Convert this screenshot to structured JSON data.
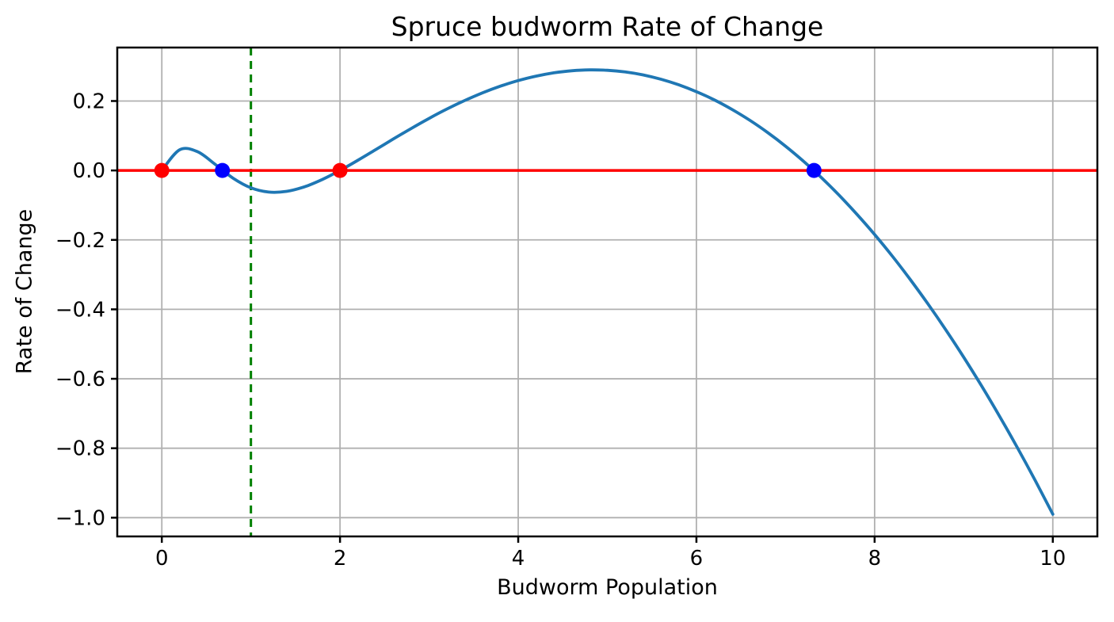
{
  "chart_data": {
    "type": "line",
    "title": "Spruce budworm Rate of Change",
    "xlabel": "Budworm Population",
    "ylabel": "Rate of Change",
    "xlim": [
      -0.5,
      10.5
    ],
    "ylim": [
      -1.054,
      0.354
    ],
    "x_ticks": [
      0,
      2,
      4,
      6,
      8,
      10
    ],
    "x_tick_labels": [
      "0",
      "2",
      "4",
      "6",
      "8",
      "10"
    ],
    "y_ticks": [
      0.2,
      0.0,
      -0.2,
      -0.4,
      -0.6,
      -0.8,
      -1.0
    ],
    "y_tick_labels": [
      "0.2",
      "0.0",
      "−0.2",
      "−0.4",
      "−0.6",
      "−0.8",
      "−1.0"
    ],
    "grid": true,
    "legend": "none",
    "colors": {
      "curve": "#1f77b4",
      "zero_line": "#ff0000",
      "threshold_line": "#008000",
      "unstable_point": "#ff0000",
      "stable_point": "#0000ff",
      "grid": "#b0b0b0",
      "spine": "#000000",
      "text": "#000000",
      "background": "#ffffff"
    },
    "series": [
      {
        "name": "rate-of-change-curve",
        "color": "#1f77b4",
        "x": [
          0,
          0.2,
          0.4,
          0.6,
          0.8,
          1,
          1.2,
          1.4,
          1.6,
          1.8,
          2,
          2.2,
          2.4,
          2.6,
          2.8,
          3,
          3.2,
          3.4,
          3.6,
          3.8,
          4,
          4.2,
          4.4,
          4.6,
          4.8,
          5,
          5.2,
          5.4,
          5.6,
          5.8,
          6,
          6.2,
          6.4,
          6.6,
          6.8,
          7,
          7.2,
          7.4,
          7.6,
          7.8,
          8,
          8.2,
          8.4,
          8.6,
          8.8,
          9,
          9.2,
          9.4,
          9.6,
          9.8,
          10
        ],
        "y": [
          0,
          0.0595,
          0.0541,
          0.0173,
          -0.0222,
          -0.05,
          -0.0622,
          -0.0602,
          -0.0471,
          -0.0262,
          0,
          0.0292,
          0.0599,
          0.0909,
          0.1211,
          0.15,
          0.177,
          0.2016,
          0.2236,
          0.2428,
          0.2588,
          0.2716,
          0.2811,
          0.2871,
          0.2896,
          0.2885,
          0.2837,
          0.2752,
          0.2629,
          0.2469,
          0.227,
          0.2034,
          0.1758,
          0.1444,
          0.1092,
          0.07,
          0.0269,
          -0.0201,
          -0.071,
          -0.1258,
          -0.1846,
          -0.2473,
          -0.314,
          -0.3847,
          -0.4593,
          -0.5378,
          -0.6203,
          -0.7068,
          -0.7973,
          -0.8917,
          -0.9901
        ]
      }
    ],
    "reference_lines": {
      "horizontal": {
        "y": 0,
        "color": "#ff0000",
        "style": "solid"
      },
      "vertical": {
        "x": 1,
        "color": "#008000",
        "style": "dashed"
      }
    },
    "points": [
      {
        "x": 0,
        "y": 0,
        "color": "#ff0000",
        "kind": "unstable-equilibrium"
      },
      {
        "x": 0.68,
        "y": 0,
        "color": "#0000ff",
        "kind": "stable-equilibrium"
      },
      {
        "x": 2,
        "y": 0,
        "color": "#ff0000",
        "kind": "unstable-equilibrium"
      },
      {
        "x": 7.32,
        "y": 0,
        "color": "#0000ff",
        "kind": "stable-equilibrium"
      }
    ]
  }
}
